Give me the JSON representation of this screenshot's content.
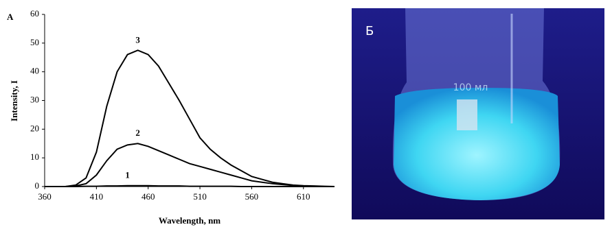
{
  "chart_data": {
    "type": "line",
    "panel_label": "A",
    "x_label": "Wavelength, nm",
    "y_label": "Intensity, I",
    "x": [
      360,
      370,
      380,
      390,
      400,
      410,
      420,
      430,
      440,
      450,
      460,
      470,
      480,
      490,
      500,
      510,
      520,
      530,
      540,
      550,
      560,
      570,
      580,
      590,
      600,
      610,
      620,
      630,
      640
    ],
    "series": [
      {
        "name": "1",
        "color": "#000000",
        "values": [
          0,
          0,
          0,
          0,
          0.1,
          0.1,
          0.2,
          0.2,
          0.3,
          0.3,
          0.3,
          0.2,
          0.2,
          0.2,
          0.1,
          0.1,
          0.1,
          0.1,
          0.1,
          0,
          0,
          0,
          0,
          0,
          0,
          0,
          0,
          0,
          0
        ]
      },
      {
        "name": "2",
        "color": "#000000",
        "values": [
          0,
          0,
          0,
          0.2,
          1,
          4,
          9,
          13,
          14.5,
          15,
          14,
          12.5,
          11,
          9.5,
          8,
          7,
          6,
          5,
          4,
          3,
          2,
          1.5,
          1,
          0.7,
          0.4,
          0.2,
          0.1,
          0,
          0
        ]
      },
      {
        "name": "3",
        "color": "#000000",
        "values": [
          0,
          0,
          0,
          0.5,
          3,
          12,
          28,
          40,
          46,
          47.5,
          46,
          42,
          36,
          30,
          23.5,
          17,
          13,
          10,
          7.5,
          5.5,
          3.5,
          2.5,
          1.5,
          1,
          0.5,
          0.3,
          0.2,
          0.1,
          0
        ]
      }
    ],
    "xlim": [
      360,
      640
    ],
    "xticks": [
      360,
      410,
      460,
      510,
      560,
      610
    ],
    "ylim": [
      0,
      60
    ],
    "yticks": [
      0,
      10,
      20,
      30,
      40,
      50,
      60
    ]
  },
  "photo": {
    "label": "Б",
    "volume_mark": "100 мл"
  }
}
